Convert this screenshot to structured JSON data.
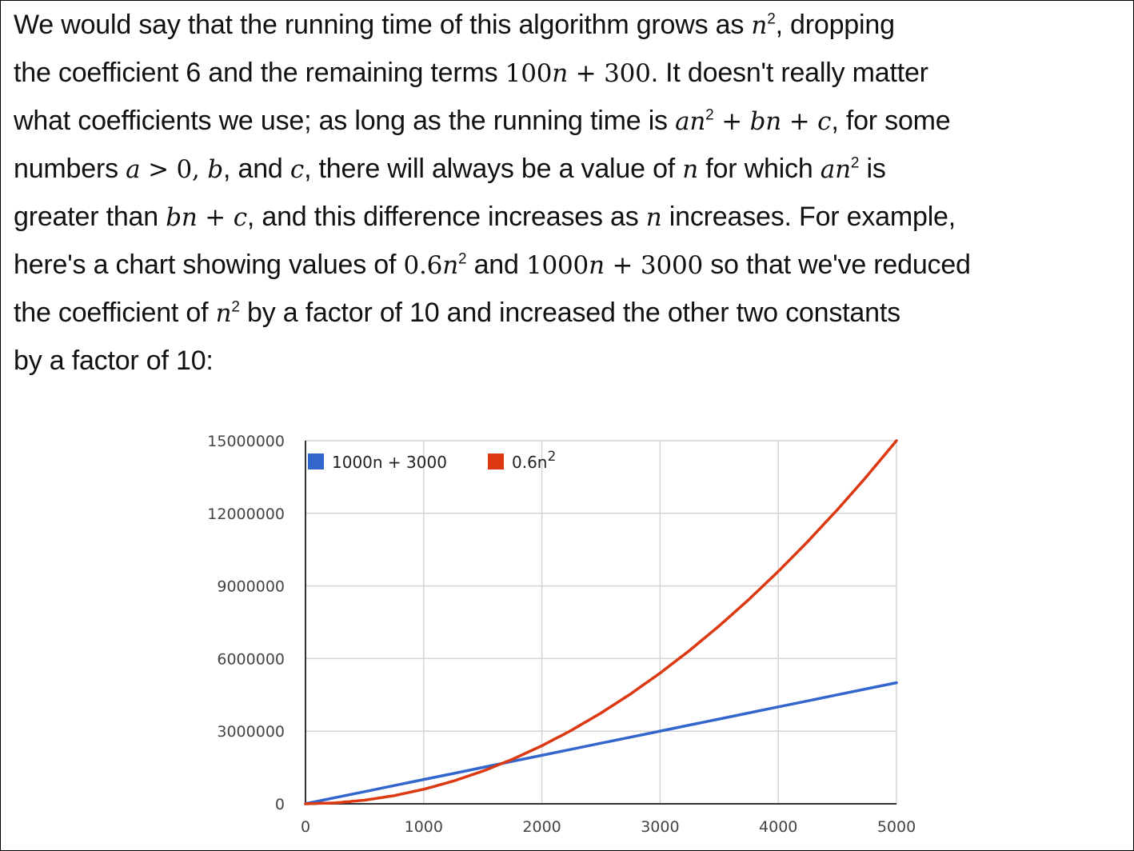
{
  "paragraph": {
    "l1": {
      "a": "We would say that the running time of this algorithm grows as ",
      "n": "n",
      "sup": "2",
      "b": ", dropping"
    },
    "l2": {
      "a": "the coefficient 6 and the remaining terms ",
      "num": "100",
      "n": "n",
      "op": " + ",
      "c": "300",
      "b": ". It doesn't really matter"
    },
    "l3": {
      "a": "what coefficients we use; as long as the running time is ",
      "an": "an",
      "sup": "2",
      "op1": " + ",
      "bn": "bn",
      "op2": " + ",
      "c": "c",
      "b": ", for some"
    },
    "l4": {
      "a": "numbers ",
      "av": "a",
      "gt": " > 0, ",
      "bv": "b",
      "and": ", and ",
      "cv": "c",
      "mid": ", there will always be a value of ",
      "n": "n",
      "fw": " for which ",
      "an": "an",
      "sup": "2",
      "end": " is"
    },
    "l5": {
      "a": "greater than ",
      "bn": "bn",
      "op": " + ",
      "c": "c",
      "mid": ", and this difference increases as ",
      "n": "n",
      "end": " increases. For example,"
    },
    "l6": {
      "a": "here's a chart showing values of ",
      "num1": "0.6",
      "n1": "n",
      "sup": "2",
      "and": " and ",
      "num2": "1000",
      "n2": "n",
      "op": " + ",
      "c": "3000",
      "end": " so that we've reduced"
    },
    "l7": {
      "a": "the coefficient of ",
      "n": "n",
      "sup": "2",
      "end": " by a factor of 10 and increased the other two constants"
    },
    "l8": {
      "a": "by a factor of 10:"
    }
  },
  "chart_data": {
    "type": "line",
    "x": [
      0,
      250,
      500,
      750,
      1000,
      1250,
      1500,
      1750,
      2000,
      2250,
      2500,
      2750,
      3000,
      3250,
      3500,
      3750,
      4000,
      4250,
      4500,
      4750,
      5000
    ],
    "series": [
      {
        "name": "1000n + 3000",
        "color": "#3366cc",
        "values": [
          3000,
          253000,
          503000,
          753000,
          1003000,
          1253000,
          1503000,
          1753000,
          2003000,
          2253000,
          2503000,
          2753000,
          3003000,
          3253000,
          3503000,
          3753000,
          4003000,
          4253000,
          4503000,
          4753000,
          5003000
        ]
      },
      {
        "name": "0.6n",
        "name_sup": "2",
        "color": "#dc3912",
        "values": [
          0,
          37500,
          150000,
          337500,
          600000,
          937500,
          1350000,
          1837500,
          2400000,
          3037500,
          3750000,
          4537500,
          5400000,
          6337500,
          7350000,
          8437500,
          9600000,
          10837500,
          12150000,
          13537500,
          15000000
        ]
      }
    ],
    "xticks": [
      "0",
      "1000",
      "2000",
      "3000",
      "4000",
      "5000"
    ],
    "yticks": [
      "0",
      "3000000",
      "6000000",
      "9000000",
      "12000000",
      "15000000"
    ],
    "xlim": [
      0,
      5000
    ],
    "ylim": [
      0,
      15000000
    ],
    "grid": true,
    "legend": "top-left",
    "title": "",
    "xlabel": "",
    "ylabel": ""
  }
}
